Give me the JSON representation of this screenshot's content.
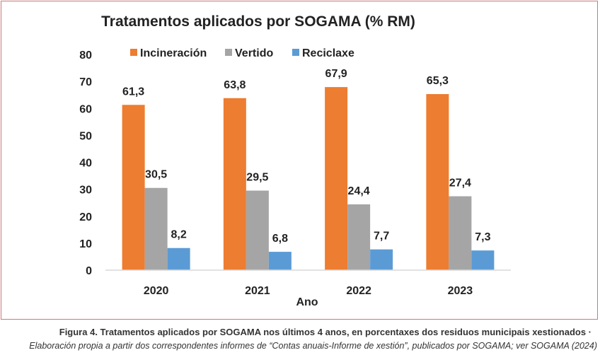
{
  "chart_data": {
    "type": "bar",
    "title": "Tratamentos aplicados por SOGAMA (% RM)",
    "xlabel": "Ano",
    "ylabel": "",
    "ylim": [
      0,
      80
    ],
    "yticks": [
      "0",
      "10",
      "20",
      "30",
      "40",
      "50",
      "60",
      "70",
      "80"
    ],
    "categories": [
      "2020",
      "2021",
      "2022",
      "2023"
    ],
    "legend_position": "top",
    "grid": false,
    "series": [
      {
        "name": "Incineración",
        "color": "#ed7d31",
        "values": [
          61.3,
          63.8,
          67.9,
          65.3
        ],
        "labels": [
          "61,3",
          "63,8",
          "67,9",
          "65,3"
        ]
      },
      {
        "name": "Vertido",
        "color": "#a5a5a5",
        "values": [
          30.5,
          29.5,
          24.4,
          27.4
        ],
        "labels": [
          "30,5",
          "29,5",
          "24,4",
          "27,4"
        ]
      },
      {
        "name": "Reciclaxe",
        "color": "#5b9bd5",
        "values": [
          8.2,
          6.8,
          7.7,
          7.3
        ],
        "labels": [
          "8,2",
          "6,8",
          "7,7",
          "7,3"
        ]
      }
    ]
  },
  "caption": {
    "line1": "Figura 4. Tratamentos aplicados por SOGAMA nos últimos 4 anos, en porcentaxes dos residuos municipais xestionados  ·",
    "line2": "Elaboración propia a partir dos correspondentes informes de “Contas anuais-Informe de xestión”, publicados por SOGAMA; ver SOGAMA (2024)"
  }
}
